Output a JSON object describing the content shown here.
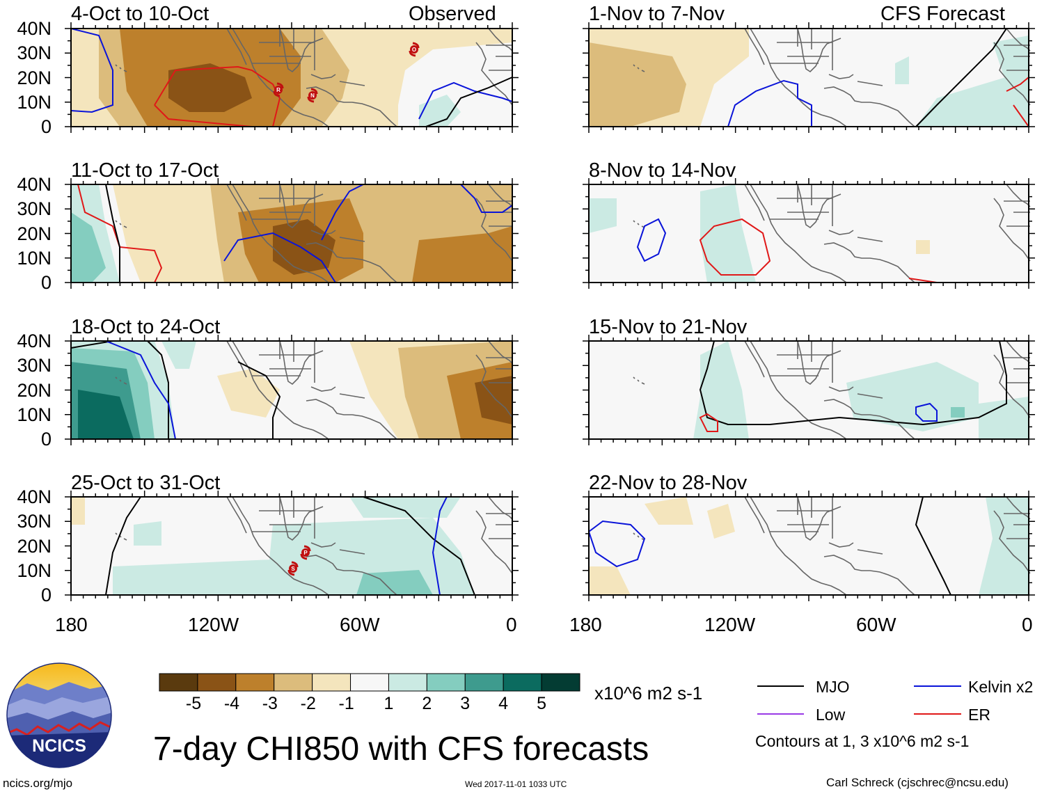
{
  "title": "7-day CHI850 with CFS forecasts",
  "observed_label": "Observed",
  "forecast_label": "CFS Forecast",
  "panels": {
    "observed": [
      "4-Oct to 10-Oct",
      "11-Oct to 17-Oct",
      "18-Oct to 24-Oct",
      "25-Oct to 31-Oct"
    ],
    "forecast": [
      "1-Nov to 7-Nov",
      "8-Nov to 14-Nov",
      "15-Nov to 21-Nov",
      "22-Nov to 28-Nov"
    ]
  },
  "lat_labels": [
    "40N",
    "30N",
    "20N",
    "10N",
    "0"
  ],
  "lon_labels": [
    "180",
    "120W",
    "60W",
    "0"
  ],
  "colorbar": {
    "colors": [
      "#5a3a0e",
      "#8a5316",
      "#bd802c",
      "#dcbc7c",
      "#f4e5bd",
      "#f7f7f7",
      "#cbeae3",
      "#84cdbf",
      "#3e9b8e",
      "#0b6b5f",
      "#033c33"
    ],
    "tick_labels": [
      "-5",
      "-4",
      "-3",
      "-2",
      "-1",
      "1",
      "2",
      "3",
      "4",
      "5"
    ],
    "units": "x10^6 m2 s-1"
  },
  "legend": {
    "mjo": {
      "label": "MJO",
      "color": "#000000"
    },
    "kelvin": {
      "label": "Kelvin x2",
      "color": "#0a14d9"
    },
    "low": {
      "label": "Low",
      "color": "#9a3ae6"
    },
    "er": {
      "label": "ER",
      "color": "#e01818"
    },
    "contours_note": "Contours at 1, 3 x10^6 m2 s-1"
  },
  "storm_markers": [
    "R",
    "N",
    "O",
    "P",
    "S"
  ],
  "logo_text": "NCICS",
  "website": "ncics.org/mjo",
  "timestamp": "Wed 2017-11-01 1033 UTC",
  "credit": "Carl Schreck (cjschrec@ncsu.edu)"
}
